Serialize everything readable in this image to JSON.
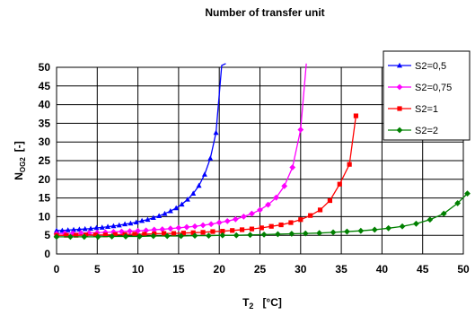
{
  "chart_data": {
    "type": "line",
    "title": "Number of transfer unit",
    "xlabel": {
      "main": "T",
      "sub": "2",
      "unit": "[°C]"
    },
    "ylabel": {
      "main": "N",
      "sub": "OG2",
      "unit": "[-]"
    },
    "xlim": [
      0,
      50
    ],
    "ylim": [
      0,
      50
    ],
    "xticks": [
      "0",
      "5",
      "10",
      "15",
      "20",
      "25",
      "30",
      "35",
      "40",
      "45",
      "50"
    ],
    "yticks": [
      "0",
      "5",
      "10",
      "15",
      "20",
      "25",
      "30",
      "35",
      "40",
      "45",
      "50"
    ],
    "grid": true,
    "legend_position": "top-right",
    "series": [
      {
        "name": "S2=0,5",
        "color": "#0000ff",
        "marker": "triangle",
        "x": [
          0,
          0.7,
          1.4,
          2.1,
          2.8,
          3.5,
          4.2,
          4.9,
          5.6,
          6.3,
          7,
          7.7,
          8.4,
          9.1,
          9.8,
          10.5,
          11.2,
          11.9,
          12.6,
          13.3,
          14,
          14.7,
          15.4,
          16.1,
          16.8,
          17.5,
          18.2,
          18.9,
          19.6,
          20.3
        ],
        "y": [
          6.3,
          6.3,
          6.4,
          6.5,
          6.6,
          6.7,
          6.8,
          7.0,
          7.1,
          7.3,
          7.5,
          7.7,
          8.0,
          8.2,
          8.5,
          8.9,
          9.2,
          9.7,
          10.2,
          10.8,
          11.5,
          12.3,
          13.3,
          14.6,
          16.2,
          18.3,
          21.3,
          25.6,
          32.5,
          50.5
        ],
        "line_x": [
          20.8
        ],
        "line_y": [
          51
        ]
      },
      {
        "name": "S2=0,75",
        "color": "#ff00ff",
        "marker": "diamond",
        "x": [
          0,
          1,
          2,
          3,
          4,
          5,
          6,
          7,
          8,
          9,
          10,
          11,
          12,
          13,
          14,
          15,
          16,
          17,
          18,
          19,
          20,
          21,
          22,
          23,
          24,
          25,
          26,
          27,
          28,
          29,
          30
        ],
        "y": [
          5.4,
          5.5,
          5.5,
          5.6,
          5.6,
          5.7,
          5.8,
          5.9,
          6.0,
          6.1,
          6.2,
          6.3,
          6.5,
          6.6,
          6.8,
          7.0,
          7.2,
          7.4,
          7.7,
          8.0,
          8.4,
          8.8,
          9.3,
          10.0,
          10.8,
          11.8,
          13.2,
          15.1,
          18.2,
          23.2,
          33.3
        ],
        "line_x": [
          30.7
        ],
        "line_y": [
          51
        ]
      },
      {
        "name": "S2=1",
        "color": "#ff0000",
        "marker": "square",
        "x": [
          0,
          1.2,
          2.4,
          3.6,
          4.8,
          6,
          7.2,
          8.4,
          9.6,
          10.8,
          12,
          13.2,
          14.4,
          15.6,
          16.8,
          18,
          19.2,
          20.4,
          21.6,
          22.8,
          24,
          25.2,
          26.4,
          27.6,
          28.8,
          30,
          31.2,
          32.4,
          33.6,
          34.8,
          36,
          36.8
        ],
        "y": [
          5.0,
          5.0,
          5.0,
          5.1,
          5.1,
          5.1,
          5.2,
          5.2,
          5.3,
          5.3,
          5.4,
          5.5,
          5.5,
          5.6,
          5.7,
          5.8,
          6.0,
          6.1,
          6.3,
          6.5,
          6.7,
          7.0,
          7.4,
          7.8,
          8.4,
          9.2,
          10.3,
          11.8,
          14.3,
          18.7,
          24.0,
          37.0
        ]
      },
      {
        "name": "S2=2",
        "color": "#008000",
        "marker": "diamond",
        "x": [
          0,
          1.7,
          3.4,
          5.1,
          6.8,
          8.5,
          10.2,
          11.9,
          13.6,
          15.3,
          17,
          18.7,
          20.4,
          22.1,
          23.8,
          25.5,
          27.2,
          28.9,
          30.6,
          32.3,
          34,
          35.7,
          37.4,
          39.1,
          40.8,
          42.5,
          44.2,
          45.9,
          47.6,
          49.3,
          50.5
        ],
        "y": [
          4.6,
          4.6,
          4.6,
          4.6,
          4.7,
          4.7,
          4.7,
          4.8,
          4.8,
          4.8,
          4.9,
          4.9,
          5.0,
          5.0,
          5.1,
          5.2,
          5.3,
          5.4,
          5.5,
          5.6,
          5.8,
          6.0,
          6.2,
          6.5,
          6.9,
          7.4,
          8.1,
          9.2,
          10.8,
          13.6,
          16.2
        ]
      }
    ]
  }
}
